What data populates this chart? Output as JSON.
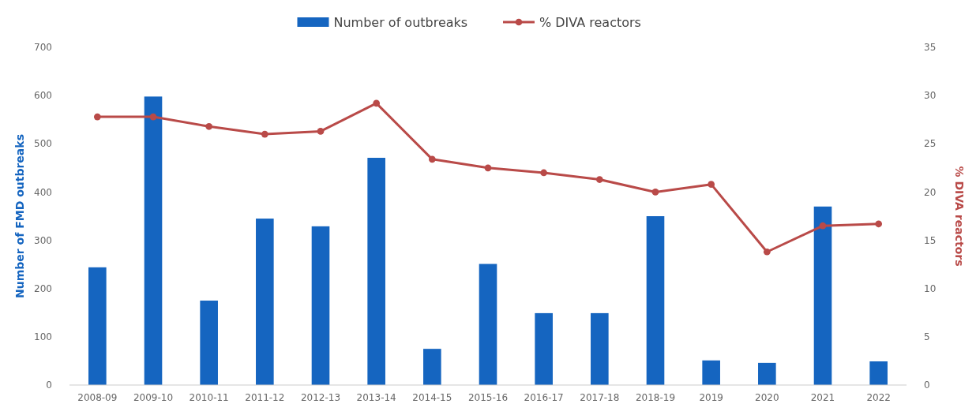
{
  "chart_data": {
    "type": "bar",
    "categories": [
      "2008-09",
      "2009-10",
      "2010-11",
      "2011-12",
      "2012-13",
      "2013-14",
      "2014-15",
      "2015-16",
      "2016-17",
      "2017-18",
      "2018-19",
      "2019",
      "2020",
      "2021",
      "2022"
    ],
    "series": [
      {
        "name": "Number of outbreaks",
        "color": "#1565c0",
        "values": [
          244,
          598,
          175,
          345,
          329,
          471,
          75,
          251,
          149,
          149,
          350,
          51,
          46,
          370,
          49
        ]
      },
      {
        "name": "% DIVA reactors",
        "type": "line",
        "axis": "y2",
        "color": "#b94a48",
        "values": [
          27.8,
          27.8,
          26.8,
          26.0,
          26.3,
          29.2,
          23.4,
          22.5,
          22.0,
          21.3,
          20.0,
          20.8,
          13.8,
          16.5,
          16.7
        ]
      }
    ],
    "ylabel": "Number of FMD outbreaks",
    "y2label": "% DIVA reactors",
    "ylim": [
      0,
      700
    ],
    "yticks": [
      0,
      100,
      200,
      300,
      400,
      500,
      600,
      700
    ],
    "y2lim": [
      0,
      35
    ],
    "y2ticks": [
      0,
      5,
      10,
      15,
      20,
      25,
      30,
      35
    ],
    "legend": "top",
    "marker": "circle",
    "grid": false
  }
}
